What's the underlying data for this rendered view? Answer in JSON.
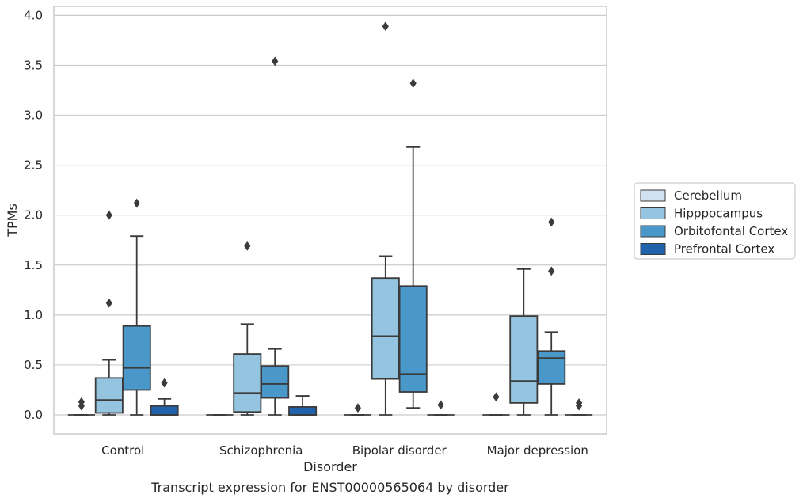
{
  "chart_data": {
    "type": "box",
    "caption": "Transcript expression for ENST00000565064 by disorder",
    "xlabel": "Disorder",
    "ylabel": "TPMs",
    "ylim": [
      -0.19,
      4.09
    ],
    "yticks": [
      "0.0",
      "0.5",
      "1.0",
      "1.5",
      "2.0",
      "2.5",
      "3.0",
      "3.5",
      "4.0"
    ],
    "ytick_values": [
      0,
      0.5,
      1.0,
      1.5,
      2.0,
      2.5,
      3.0,
      3.5,
      4.0
    ],
    "grid": "horizontal",
    "legend_position": "right",
    "categories": [
      "Control",
      "Schizophrenia",
      "Bipolar disorder",
      "Major depression"
    ],
    "series": [
      {
        "name": "Cerebellum",
        "color": "#d0e1f2",
        "boxes": [
          {
            "whisker_low": 0,
            "q1": 0,
            "median": 0,
            "q3": 0,
            "whisker_high": 0,
            "outliers": [
              0.13,
              0.09
            ]
          },
          {
            "whisker_low": 0,
            "q1": 0,
            "median": 0,
            "q3": 0,
            "whisker_high": 0,
            "outliers": []
          },
          {
            "whisker_low": 0,
            "q1": 0,
            "median": 0,
            "q3": 0,
            "whisker_high": 0,
            "outliers": [
              0.07
            ]
          },
          {
            "whisker_low": 0,
            "q1": 0,
            "median": 0,
            "q3": 0,
            "whisker_high": 0,
            "outliers": [
              0.18
            ]
          }
        ]
      },
      {
        "name": "Hipppocampus",
        "color": "#94c4df",
        "boxes": [
          {
            "whisker_low": 0,
            "q1": 0.02,
            "median": 0.15,
            "q3": 0.37,
            "whisker_high": 0.55,
            "outliers": [
              2.0,
              1.12
            ]
          },
          {
            "whisker_low": 0,
            "q1": 0.03,
            "median": 0.22,
            "q3": 0.61,
            "whisker_high": 0.91,
            "outliers": [
              1.69
            ]
          },
          {
            "whisker_low": 0,
            "q1": 0.36,
            "median": 0.79,
            "q3": 1.37,
            "whisker_high": 1.59,
            "outliers": [
              3.89
            ]
          },
          {
            "whisker_low": 0,
            "q1": 0.12,
            "median": 0.34,
            "q3": 0.99,
            "whisker_high": 1.46,
            "outliers": []
          }
        ]
      },
      {
        "name": "Orbitofontal Cortex",
        "color": "#4a98c9",
        "boxes": [
          {
            "whisker_low": 0,
            "q1": 0.25,
            "median": 0.47,
            "q3": 0.89,
            "whisker_high": 1.79,
            "outliers": [
              2.12
            ]
          },
          {
            "whisker_low": 0,
            "q1": 0.17,
            "median": 0.31,
            "q3": 0.49,
            "whisker_high": 0.66,
            "outliers": [
              3.54
            ]
          },
          {
            "whisker_low": 0.07,
            "q1": 0.23,
            "median": 0.41,
            "q3": 1.29,
            "whisker_high": 2.68,
            "outliers": [
              3.32
            ]
          },
          {
            "whisker_low": 0,
            "q1": 0.31,
            "median": 0.57,
            "q3": 0.64,
            "whisker_high": 0.83,
            "outliers": [
              1.93,
              1.44
            ]
          }
        ]
      },
      {
        "name": "Prefrontal Cortex",
        "color": "#2163aa",
        "boxes": [
          {
            "whisker_low": 0,
            "q1": 0,
            "median": 0,
            "q3": 0.09,
            "whisker_high": 0.16,
            "outliers": [
              0.32
            ]
          },
          {
            "whisker_low": 0,
            "q1": 0,
            "median": 0,
            "q3": 0.08,
            "whisker_high": 0.19,
            "outliers": []
          },
          {
            "whisker_low": 0,
            "q1": 0,
            "median": 0,
            "q3": 0,
            "whisker_high": 0,
            "outliers": [
              0.1
            ]
          },
          {
            "whisker_low": 0,
            "q1": 0,
            "median": 0,
            "q3": 0,
            "whisker_high": 0,
            "outliers": [
              0.12,
              0.09
            ]
          }
        ]
      }
    ]
  },
  "style": {
    "edge_color": "#3b3b3b",
    "grid_color": "#cccccc",
    "frame_color": "#cccccc"
  }
}
